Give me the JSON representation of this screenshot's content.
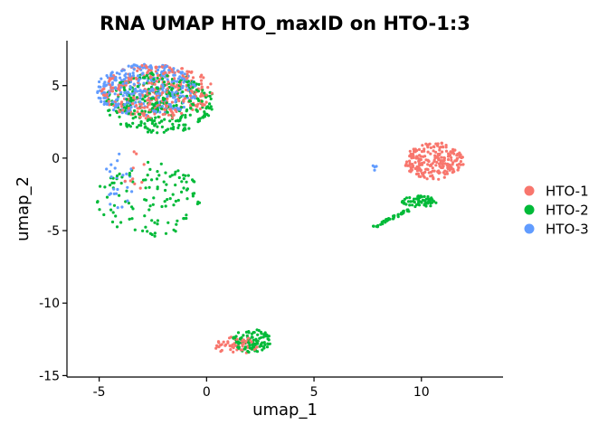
{
  "chart_data": {
    "type": "scatter",
    "title": "RNA UMAP HTO_maxID on HTO-1:3",
    "xlabel": "umap_1",
    "ylabel": "umap_2",
    "xlim": [
      -6.5,
      13.8
    ],
    "ylim": [
      -15.1,
      8.1
    ],
    "x_ticks": [
      -5,
      0,
      5,
      10
    ],
    "y_ticks": [
      -15,
      -10,
      -5,
      0,
      5
    ],
    "grid": false,
    "legend_position": "right",
    "series": [
      {
        "name": "HTO-1",
        "color": "#F8766D",
        "clusters": [
          {
            "kind": "ellipse",
            "cx": -2.3,
            "cy": 4.6,
            "rx": 2.6,
            "ry": 1.9,
            "n": 320
          },
          {
            "kind": "ellipse",
            "cx": 10.6,
            "cy": -0.2,
            "rx": 1.4,
            "ry": 1.3,
            "n": 230
          },
          {
            "kind": "ellipse",
            "cx": 1.4,
            "cy": -12.9,
            "rx": 1.1,
            "ry": 0.6,
            "n": 60
          },
          {
            "kind": "ellipse",
            "cx": -3.6,
            "cy": -0.8,
            "rx": 0.8,
            "ry": 1.8,
            "n": 10
          }
        ]
      },
      {
        "name": "HTO-2",
        "color": "#00BA38",
        "clusters": [
          {
            "kind": "ellipse",
            "cx": -2.2,
            "cy": 3.8,
            "rx": 2.6,
            "ry": 2.1,
            "n": 330
          },
          {
            "kind": "ellipse",
            "cx": -2.6,
            "cy": -2.8,
            "rx": 2.5,
            "ry": 2.6,
            "n": 120
          },
          {
            "kind": "ellipse",
            "cx": 2.1,
            "cy": -12.6,
            "rx": 0.9,
            "ry": 0.8,
            "n": 90
          },
          {
            "kind": "ellipse",
            "cx": 9.9,
            "cy": -3.0,
            "rx": 0.8,
            "ry": 0.4,
            "n": 60
          },
          {
            "kind": "line",
            "x0": 7.6,
            "y0": -4.9,
            "x1": 9.4,
            "y1": -3.6,
            "n": 40
          }
        ]
      },
      {
        "name": "HTO-3",
        "color": "#619CFF",
        "clusters": [
          {
            "kind": "ellipse",
            "cx": -2.8,
            "cy": 4.7,
            "rx": 2.4,
            "ry": 1.8,
            "n": 330
          },
          {
            "kind": "ellipse",
            "cx": -4.1,
            "cy": -1.6,
            "rx": 0.7,
            "ry": 2.0,
            "n": 25
          },
          {
            "kind": "ellipse",
            "cx": 7.8,
            "cy": -0.7,
            "rx": 0.15,
            "ry": 0.2,
            "n": 4
          }
        ]
      }
    ]
  }
}
